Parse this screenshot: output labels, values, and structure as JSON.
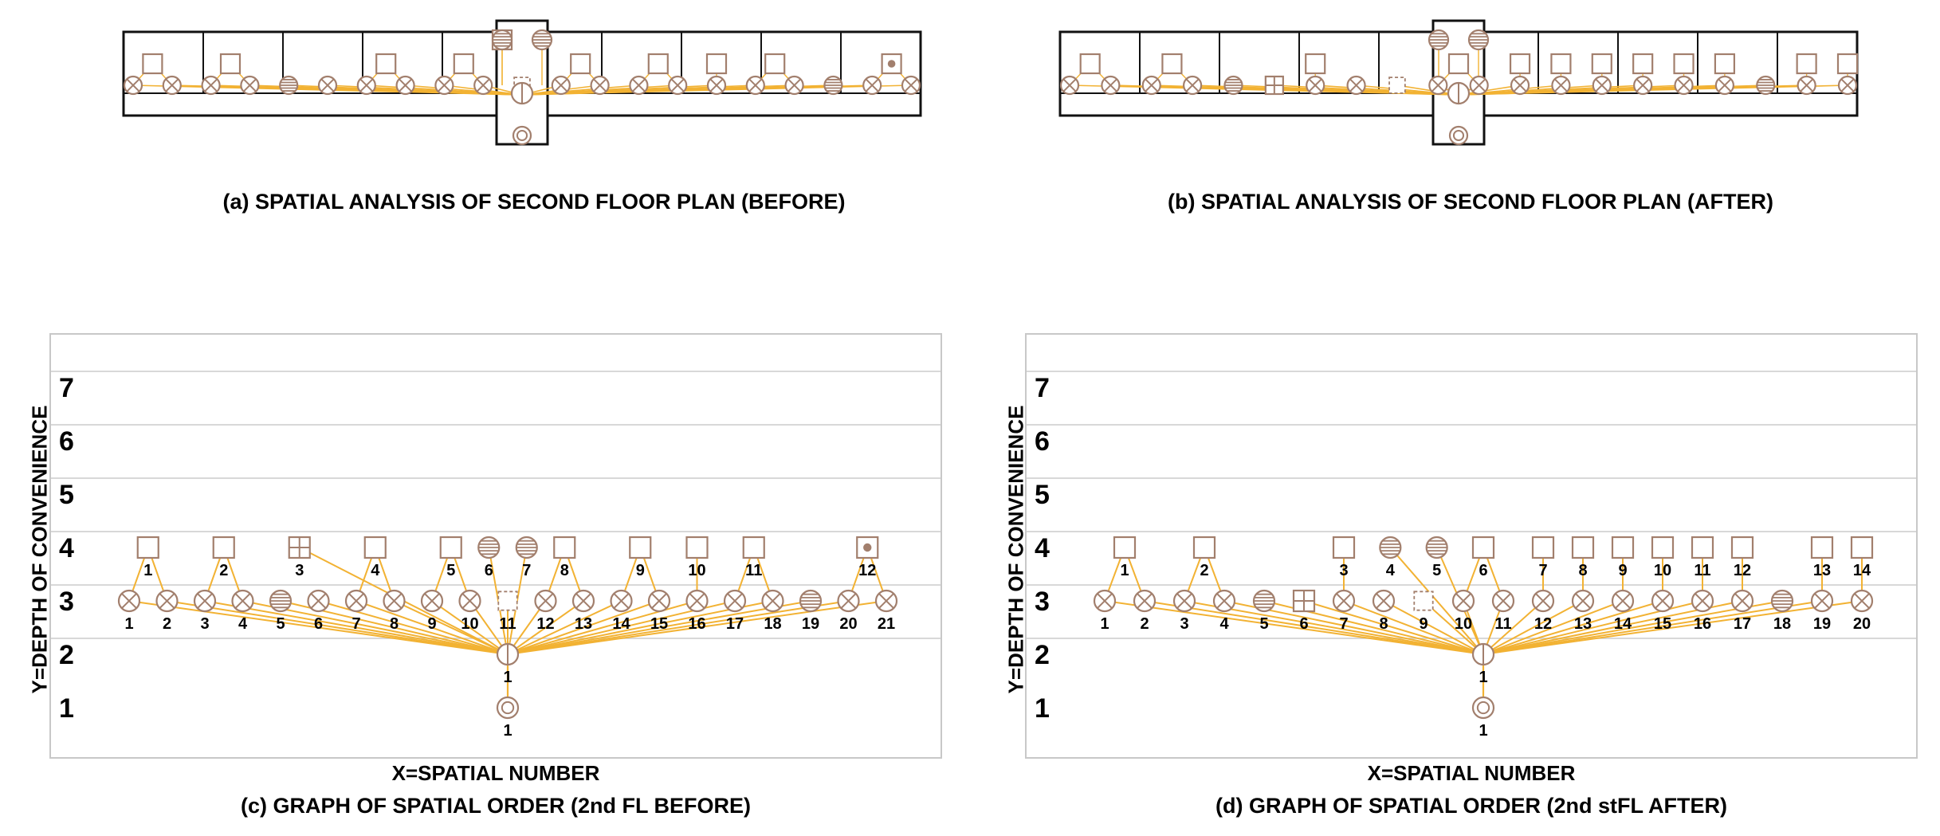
{
  "captions": {
    "a": "(a) SPATIAL ANALYSIS OF SECOND FLOOR PLAN (BEFORE)",
    "b": "(b) SPATIAL ANALYSIS OF SECOND FLOOR PLAN  (AFTER)",
    "c": "(c) GRAPH OF SPATIAL ORDER (2nd FL BEFORE)",
    "d": "(d) GRAPH OF SPATIAL ORDER (2nd  stFL AFTER)"
  },
  "axis": {
    "ylabel": "Y=DEPTH OF CONVENIENCE",
    "xlabel": "X=SPATIAL NUMBER",
    "yticks": [
      "1",
      "2",
      "3",
      "4",
      "5",
      "6",
      "7"
    ]
  },
  "colors": {
    "node": "#a27f6d",
    "edge": "#f2b233",
    "grid": "#cccccc",
    "frame": "#c8c8c8",
    "wall": "#111111"
  },
  "graph_before": {
    "root": {
      "label": "1",
      "type": "double-circle",
      "x": 0.5,
      "y": 1
    },
    "hub": {
      "label": "1",
      "type": "circle-bar",
      "x": 0.5,
      "y": 2
    },
    "level3": [
      {
        "label": "1",
        "type": "x"
      },
      {
        "label": "2",
        "type": "x"
      },
      {
        "label": "3",
        "type": "x"
      },
      {
        "label": "4",
        "type": "x"
      },
      {
        "label": "5",
        "type": "stair"
      },
      {
        "label": "6",
        "type": "x"
      },
      {
        "label": "7",
        "type": "x"
      },
      {
        "label": "8",
        "type": "x"
      },
      {
        "label": "9",
        "type": "x"
      },
      {
        "label": "10",
        "type": "x"
      },
      {
        "label": "11",
        "type": "dashed"
      },
      {
        "label": "12",
        "type": "x"
      },
      {
        "label": "13",
        "type": "x"
      },
      {
        "label": "14",
        "type": "x"
      },
      {
        "label": "15",
        "type": "x"
      },
      {
        "label": "16",
        "type": "x"
      },
      {
        "label": "17",
        "type": "x"
      },
      {
        "label": "18",
        "type": "x"
      },
      {
        "label": "19",
        "type": "stair"
      },
      {
        "label": "20",
        "type": "x"
      },
      {
        "label": "21",
        "type": "x"
      }
    ],
    "level4": [
      {
        "label": "1",
        "type": "square",
        "parents": [
          1,
          2
        ]
      },
      {
        "label": "2",
        "type": "square",
        "parents": [
          3,
          4
        ]
      },
      {
        "label": "3",
        "type": "grid",
        "parents": []
      },
      {
        "label": "4",
        "type": "square",
        "parents": [
          7,
          8
        ]
      },
      {
        "label": "5",
        "type": "square",
        "parents": [
          9,
          10
        ]
      },
      {
        "label": "6",
        "type": "stair",
        "parents": []
      },
      {
        "label": "7",
        "type": "stair",
        "parents": []
      },
      {
        "label": "8",
        "type": "square",
        "parents": [
          12,
          13
        ]
      },
      {
        "label": "9",
        "type": "square",
        "parents": [
          14,
          15
        ]
      },
      {
        "label": "10",
        "type": "square",
        "parents": [
          16
        ]
      },
      {
        "label": "11",
        "type": "square",
        "parents": [
          17,
          18
        ]
      },
      {
        "label": "12",
        "type": "dot-square",
        "parents": [
          20,
          21
        ]
      }
    ]
  },
  "graph_after": {
    "root": {
      "label": "1",
      "type": "double-circle",
      "x": 0.5,
      "y": 1
    },
    "hub": {
      "label": "1",
      "type": "circle-bar",
      "x": 0.5,
      "y": 2
    },
    "level3": [
      {
        "label": "1",
        "type": "x"
      },
      {
        "label": "2",
        "type": "x"
      },
      {
        "label": "3",
        "type": "x"
      },
      {
        "label": "4",
        "type": "x"
      },
      {
        "label": "5",
        "type": "stair"
      },
      {
        "label": "6",
        "type": "grid"
      },
      {
        "label": "7",
        "type": "x"
      },
      {
        "label": "8",
        "type": "x"
      },
      {
        "label": "9",
        "type": "dashed"
      },
      {
        "label": "10",
        "type": "x"
      },
      {
        "label": "11",
        "type": "x"
      },
      {
        "label": "12",
        "type": "x"
      },
      {
        "label": "13",
        "type": "x"
      },
      {
        "label": "14",
        "type": "x"
      },
      {
        "label": "15",
        "type": "x"
      },
      {
        "label": "16",
        "type": "x"
      },
      {
        "label": "17",
        "type": "x"
      },
      {
        "label": "18",
        "type": "stair"
      },
      {
        "label": "19",
        "type": "x"
      },
      {
        "label": "20",
        "type": "x"
      }
    ],
    "level4": [
      {
        "label": "1",
        "type": "square",
        "parents": [
          1,
          2
        ]
      },
      {
        "label": "2",
        "type": "square",
        "parents": [
          3,
          4
        ]
      },
      {
        "label": "3",
        "type": "square",
        "parents": [
          7
        ]
      },
      {
        "label": "4",
        "type": "stair",
        "parents": []
      },
      {
        "label": "5",
        "type": "stair",
        "parents": []
      },
      {
        "label": "6",
        "type": "square",
        "parents": [
          10,
          11
        ]
      },
      {
        "label": "7",
        "type": "square",
        "parents": [
          12
        ]
      },
      {
        "label": "8",
        "type": "square",
        "parents": [
          13
        ]
      },
      {
        "label": "9",
        "type": "square",
        "parents": [
          14
        ]
      },
      {
        "label": "10",
        "type": "square",
        "parents": [
          15
        ]
      },
      {
        "label": "11",
        "type": "square",
        "parents": [
          16
        ]
      },
      {
        "label": "12",
        "type": "square",
        "parents": [
          17
        ]
      },
      {
        "label": "13",
        "type": "square",
        "parents": [
          19
        ]
      },
      {
        "label": "14",
        "type": "square",
        "parents": [
          20
        ]
      }
    ]
  }
}
